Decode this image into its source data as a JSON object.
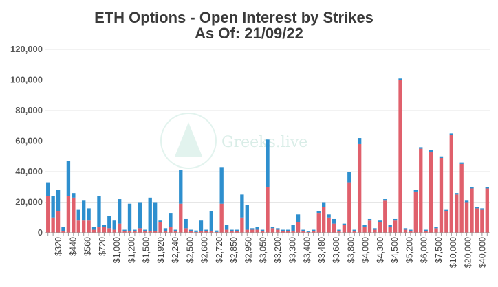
{
  "chart_data": {
    "type": "bar",
    "stacked": true,
    "title": "ETH Options - Open Interest by Strikes",
    "subtitle": "As Of: 21/09/22",
    "ylim": [
      0,
      120000
    ],
    "yticks": [
      "0",
      "20,000",
      "40,000",
      "60,000",
      "80,000",
      "100,000",
      "120,000"
    ],
    "grid": true,
    "watermark": "Greeks.live",
    "colors": {
      "call": "#2e8fce",
      "put": "#e0606c",
      "grid": "#e6e6e6",
      "axis": "#999999"
    },
    "x_tick_labels": [
      "$320",
      "$440",
      "$560",
      "$720",
      "$1,000",
      "$1,200",
      "$1,500",
      "$1,920",
      "$2,240",
      "$2,500",
      "$2,600",
      "$2,720",
      "$2,850",
      "$2,950",
      "$3,050",
      "$3,200",
      "$3,300",
      "$3,400",
      "$3,480",
      "$3,600",
      "$3,800",
      "$4,000",
      "$4,300",
      "$4,500",
      "$5,200",
      "$6,000",
      "$7,500",
      "$10,000",
      "$20,000",
      "$40,000"
    ],
    "put_values": [
      24000,
      10000,
      14000,
      1000,
      24000,
      23000,
      8000,
      8000,
      8000,
      2000,
      4000,
      4000,
      3000,
      2000,
      6000,
      1000,
      1000,
      1000,
      3000,
      1000,
      1000,
      1000,
      7000,
      1000,
      4000,
      1000,
      19000,
      3000,
      1000,
      500,
      1000,
      1000,
      1000,
      500,
      19000,
      2000,
      1000,
      1000,
      10000,
      2000,
      2000,
      2000,
      1000,
      30000,
      3000,
      2000,
      1000,
      1000,
      1000,
      7000,
      1000,
      500,
      1000,
      13000,
      17000,
      10000,
      6000,
      1000,
      5000,
      33000,
      1000,
      58000,
      4000,
      8000,
      2000,
      7000,
      21000,
      4000,
      8000,
      100000,
      2000,
      1000,
      27000,
      55000,
      1000,
      53000,
      3000,
      49000,
      14000,
      64000,
      25000,
      45000,
      20000,
      29000,
      16000,
      15000,
      29000
    ],
    "call_values": [
      9000,
      14000,
      14000,
      3000,
      23000,
      3000,
      7000,
      13000,
      8000,
      2000,
      20000,
      1000,
      8000,
      6000,
      16000,
      1000,
      18000,
      1000,
      17000,
      1000,
      22000,
      19000,
      1000,
      2000,
      9000,
      1000,
      22000,
      6000,
      1000,
      1000,
      7000,
      1000,
      13000,
      1000,
      24000,
      3000,
      1000,
      1000,
      15000,
      16000,
      1000,
      2000,
      1000,
      31000,
      1000,
      1000,
      1000,
      1000,
      4000,
      5000,
      1000,
      500,
      1000,
      1000,
      3000,
      2000,
      3000,
      1000,
      1000,
      7000,
      1000,
      4000,
      1000,
      1000,
      1000,
      1000,
      1000,
      1000,
      1000,
      1000,
      1000,
      1000,
      1000,
      1000,
      1000,
      1000,
      1000,
      1000,
      1000,
      1000,
      1000,
      1000,
      1000,
      1000,
      1000,
      1000,
      1000
    ]
  }
}
